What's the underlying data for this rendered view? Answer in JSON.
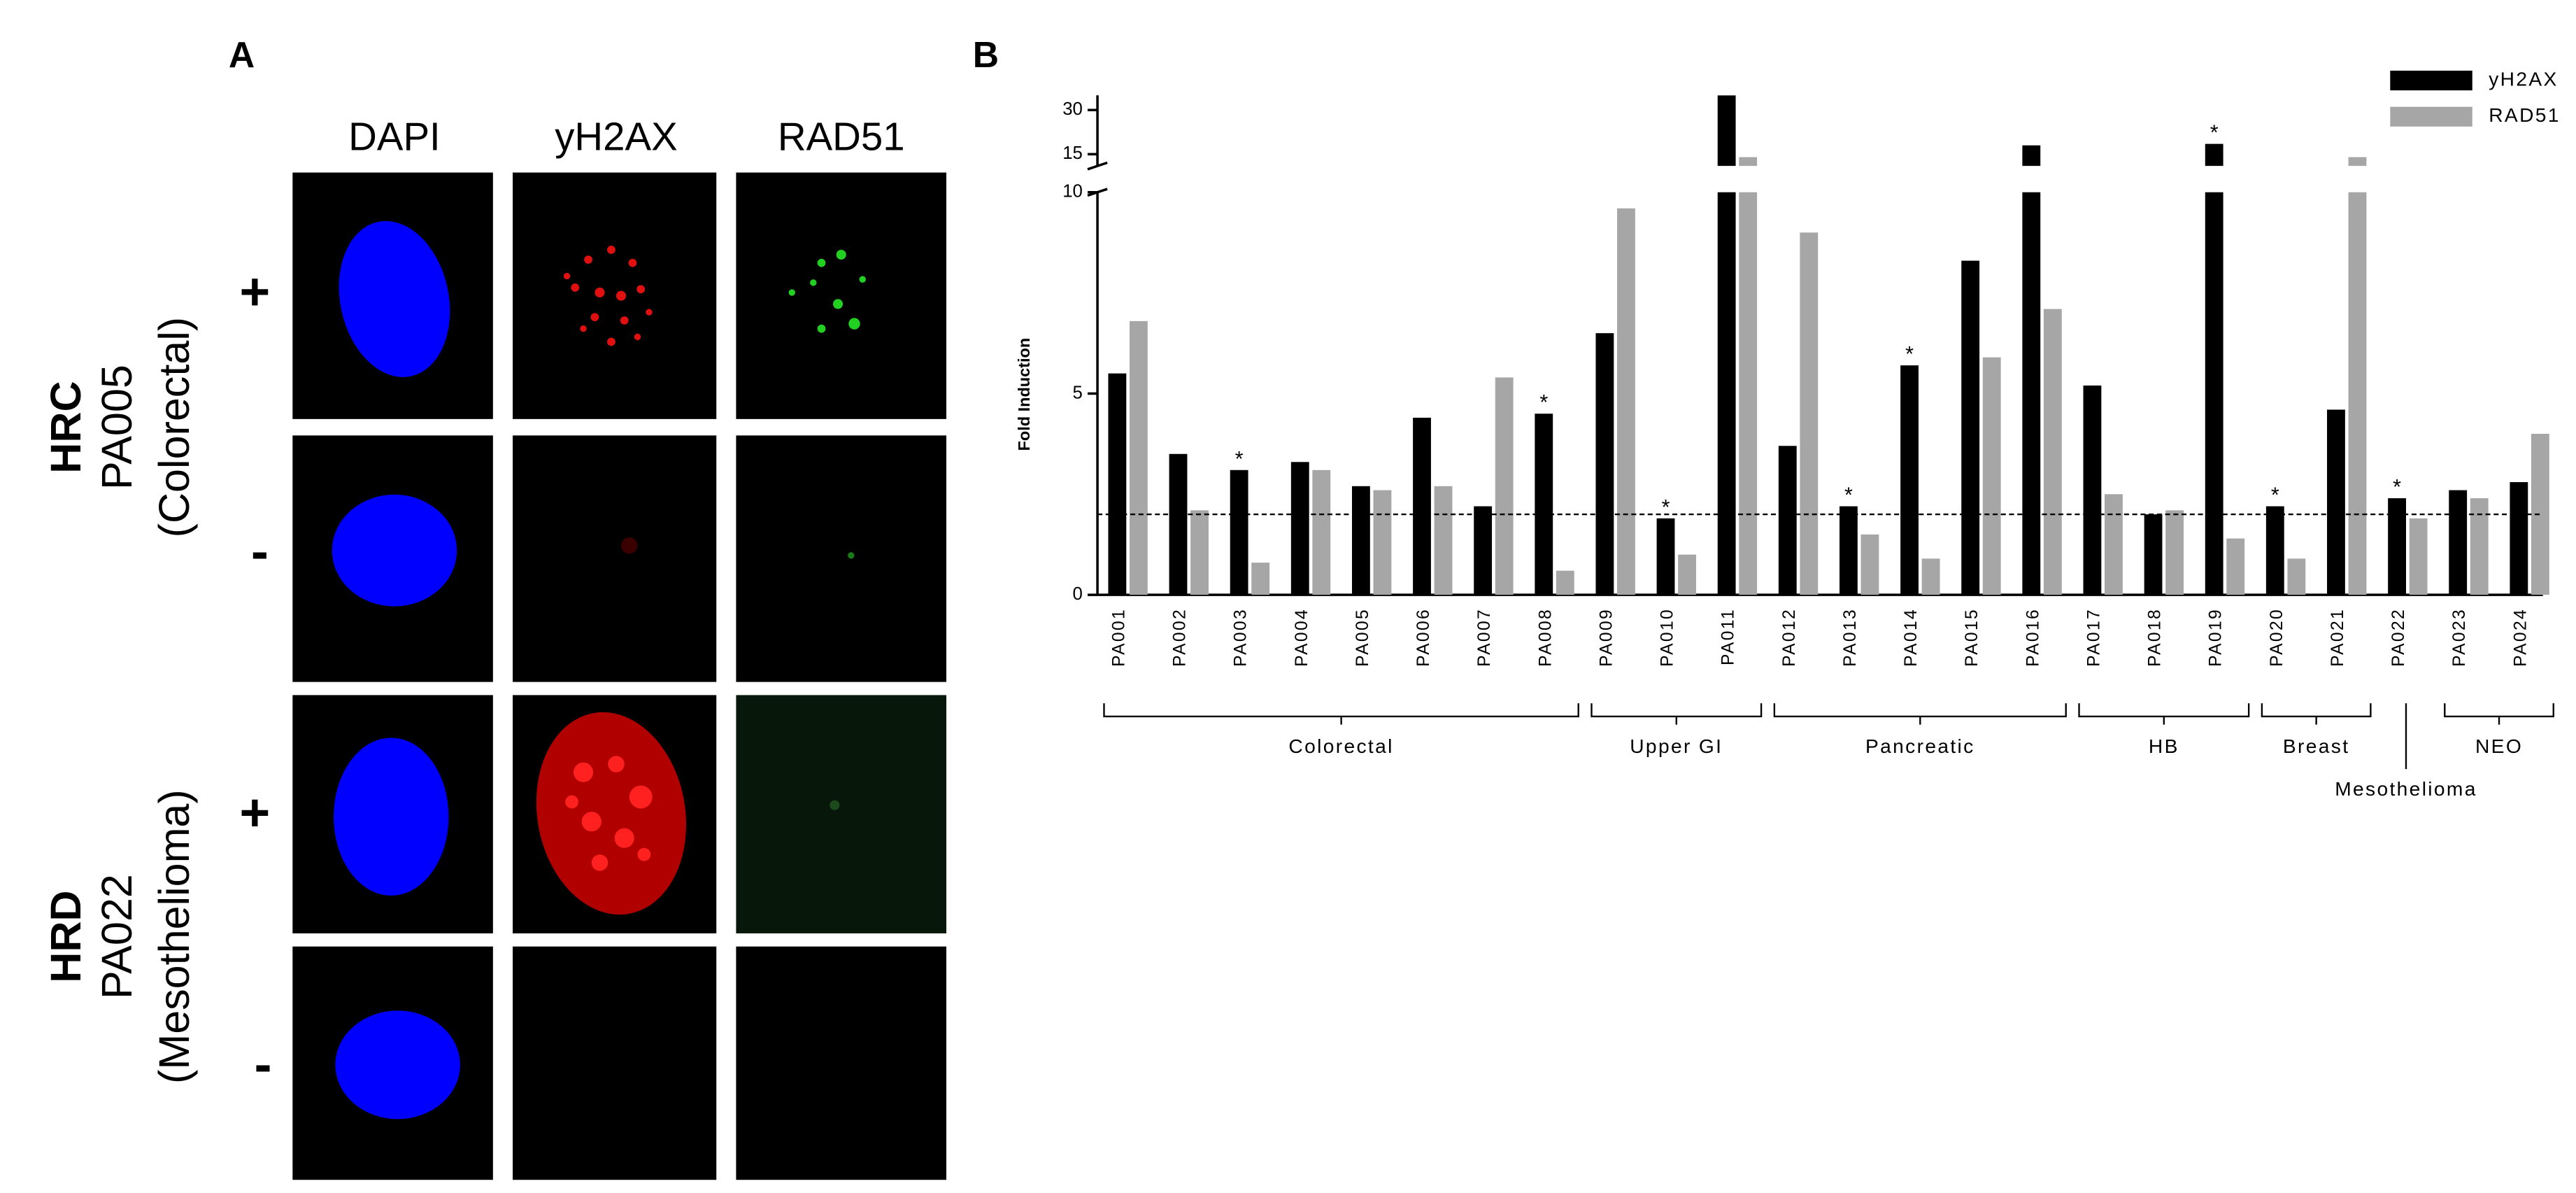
{
  "panel_a": {
    "label": "A",
    "columns": [
      "DAPI",
      "yH2AX",
      "RAD51"
    ],
    "rows": [
      {
        "group": "HRC",
        "sample": "PA005",
        "tissue": "(Colorectal)",
        "conditions": [
          "+",
          "-"
        ]
      },
      {
        "group": "HRD",
        "sample": "PA022",
        "tissue": "(Mesothelioma)",
        "conditions": [
          "+",
          "-"
        ]
      }
    ]
  },
  "chart_data": {
    "type": "bar",
    "panel_label": "B",
    "y_label": "Fold Induction",
    "categories": [
      "PA001",
      "PA002",
      "PA003",
      "PA004",
      "PA005",
      "PA006",
      "PA007",
      "PA008",
      "PA009",
      "PA010",
      "PA011",
      "PA012",
      "PA013",
      "PA014",
      "PA015",
      "PA016",
      "PA017",
      "PA018",
      "PA019",
      "PA020",
      "PA021",
      "PA022",
      "PA023",
      "PA024"
    ],
    "series": [
      {
        "name": "yH2AX",
        "color": "#000000",
        "values": [
          5.5,
          3.5,
          3.1,
          3.3,
          2.7,
          4.4,
          2.2,
          4.5,
          6.5,
          1.9,
          35,
          3.7,
          2.2,
          5.7,
          8.3,
          18,
          5.2,
          2.0,
          18.5,
          2.2,
          4.6,
          2.4,
          2.6,
          2.8
        ]
      },
      {
        "name": "RAD51",
        "color": "#a6a6a6",
        "values": [
          6.8,
          2.1,
          0.8,
          3.1,
          2.6,
          2.7,
          5.4,
          0.6,
          9.6,
          1.0,
          14,
          9.0,
          1.5,
          0.9,
          5.9,
          7.1,
          2.5,
          2.1,
          1.4,
          0.9,
          14,
          1.9,
          2.4,
          4.0
        ]
      }
    ],
    "ylim": [
      0,
      10
    ],
    "yticks": [
      0,
      5,
      10
    ],
    "y_break": {
      "ylim": [
        11,
        35
      ],
      "yticks": [
        15,
        30
      ]
    },
    "reference_line": 2,
    "legend": "upper right",
    "annotations": [
      {
        "category": "PA003",
        "text": "*"
      },
      {
        "category": "PA008",
        "text": "*"
      },
      {
        "category": "PA010",
        "text": "*"
      },
      {
        "category": "PA013",
        "text": "*"
      },
      {
        "category": "PA014",
        "text": "*"
      },
      {
        "category": "PA019",
        "text": "*"
      },
      {
        "category": "PA020",
        "text": "*"
      },
      {
        "category": "PA022",
        "text": "*"
      }
    ],
    "groups": [
      {
        "label": "Colorectal",
        "from": "PA001",
        "to": "PA008"
      },
      {
        "label": "Upper GI",
        "from": "PA009",
        "to": "PA011"
      },
      {
        "label": "Pancreatic",
        "from": "PA012",
        "to": "PA016"
      },
      {
        "label": "HB",
        "from": "PA017",
        "to": "PA019"
      },
      {
        "label": "Breast",
        "from": "PA020",
        "to": "PA021"
      },
      {
        "label": "Mesothelioma",
        "from": "PA022",
        "to": "PA022"
      },
      {
        "label": "NEO",
        "from": "PA023",
        "to": "PA024"
      }
    ]
  }
}
